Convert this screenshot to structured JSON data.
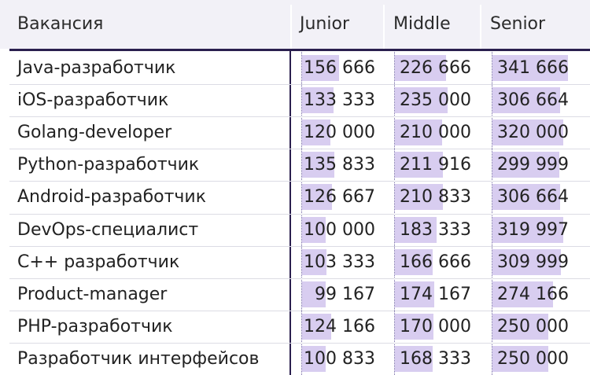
{
  "chart_data": {
    "type": "table",
    "columns": [
      "Вакансия",
      "Junior",
      "Middle",
      "Senior"
    ],
    "rows": [
      {
        "name": "Java-разработчик",
        "values": [
          156666,
          226666,
          341666
        ],
        "labels": [
          "156 666",
          "226 666",
          "341 666"
        ]
      },
      {
        "name": "iOS-разработчик",
        "values": [
          133333,
          235000,
          306664
        ],
        "labels": [
          "133 333",
          "235 000",
          "306 664"
        ]
      },
      {
        "name": "Golang-developer",
        "values": [
          120000,
          210000,
          320000
        ],
        "labels": [
          "120 000",
          "210 000",
          "320 000"
        ]
      },
      {
        "name": "Python-разработчик",
        "values": [
          135833,
          211916,
          299999
        ],
        "labels": [
          "135 833",
          "211 916",
          "299 999"
        ]
      },
      {
        "name": "Android-разработчик",
        "values": [
          126667,
          210833,
          306664
        ],
        "labels": [
          "126 667",
          "210 833",
          "306 664"
        ]
      },
      {
        "name": "DevOps-специалист",
        "values": [
          100000,
          183333,
          319997
        ],
        "labels": [
          "100 000",
          "183 333",
          "319 997"
        ]
      },
      {
        "name": "C++ разработчик",
        "values": [
          103333,
          166666,
          309999
        ],
        "labels": [
          "103 333",
          "166 666",
          "309 999"
        ]
      },
      {
        "name": "Product-manager",
        "values": [
          99167,
          174167,
          274166
        ],
        "labels": [
          "99 167",
          "174 167",
          "274 166"
        ]
      },
      {
        "name": "PHP-разработчик",
        "values": [
          124166,
          170000,
          250000
        ],
        "labels": [
          "124 166",
          "170 000",
          "250 000"
        ]
      },
      {
        "name": "Разработчик интерфейсов",
        "values": [
          100833,
          168333,
          250000
        ],
        "labels": [
          "100 833",
          "168 333",
          "250 000"
        ]
      }
    ],
    "bar_color": "#d8cdf0",
    "header_rule_color": "#2a1f4e"
  }
}
